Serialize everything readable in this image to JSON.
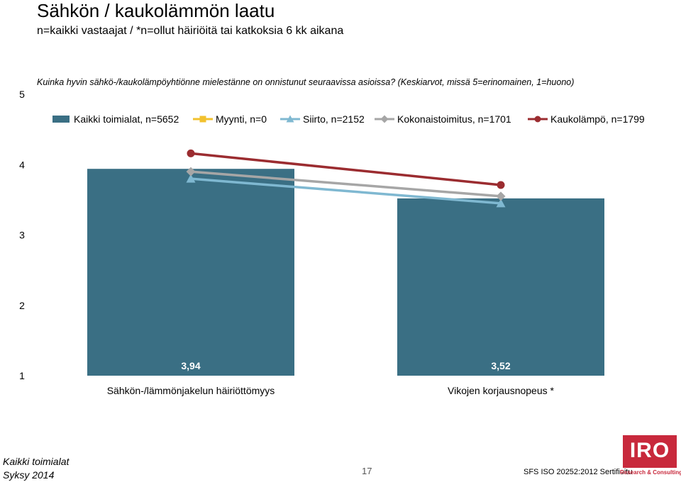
{
  "header": {
    "title": "Sähkön / kaukolämmön laatu",
    "subtitle": "n=kaikki vastaajat / *n=ollut häiriöitä tai katkoksia 6 kk aikana",
    "question": "Kuinka hyvin sähkö-/kaukolämpöyhtiönne mielestänne on onnistunut seuraavissa asioissa? (Keskiarvot, missä 5=erinomainen, 1=huono)"
  },
  "chart_data": {
    "type": "bar",
    "categories": [
      "Sähkön-/lämmönjakelun häiriöttömyys",
      "Vikojen korjausnopeus *"
    ],
    "ylim": [
      1,
      5
    ],
    "yticks": [
      "1",
      "2",
      "3",
      "4",
      "5"
    ],
    "grid": false,
    "legend": "top",
    "bar_series": {
      "name": "Kaikki toimialat, n=5652",
      "values": [
        3.94,
        3.52
      ],
      "labels": [
        "3,94",
        "3,52"
      ],
      "color": "#3a6f84"
    },
    "line_series": [
      {
        "name": "Myynti, n=0",
        "values": [
          null,
          null
        ],
        "color": "#f2c12e",
        "marker": "square"
      },
      {
        "name": "Siirto, n=2152",
        "values": [
          3.8,
          3.45
        ],
        "color": "#7fb8d1",
        "marker": "triangle"
      },
      {
        "name": "Kokonaistoimitus, n=1701",
        "values": [
          3.9,
          3.55
        ],
        "color": "#a6a6a6",
        "marker": "diamond"
      },
      {
        "name": "Kaukolämpö, n=1799",
        "values": [
          4.16,
          3.71
        ],
        "color": "#9b2c30",
        "marker": "circle"
      }
    ]
  },
  "footer": {
    "line1": "Kaikki toimialat",
    "line2": "Syksy 2014",
    "page": "17",
    "cert": "SFS ISO 20252:2012 Sertifioitu",
    "logo_text": "IRO",
    "logo_sub": "Research & Consulting"
  }
}
